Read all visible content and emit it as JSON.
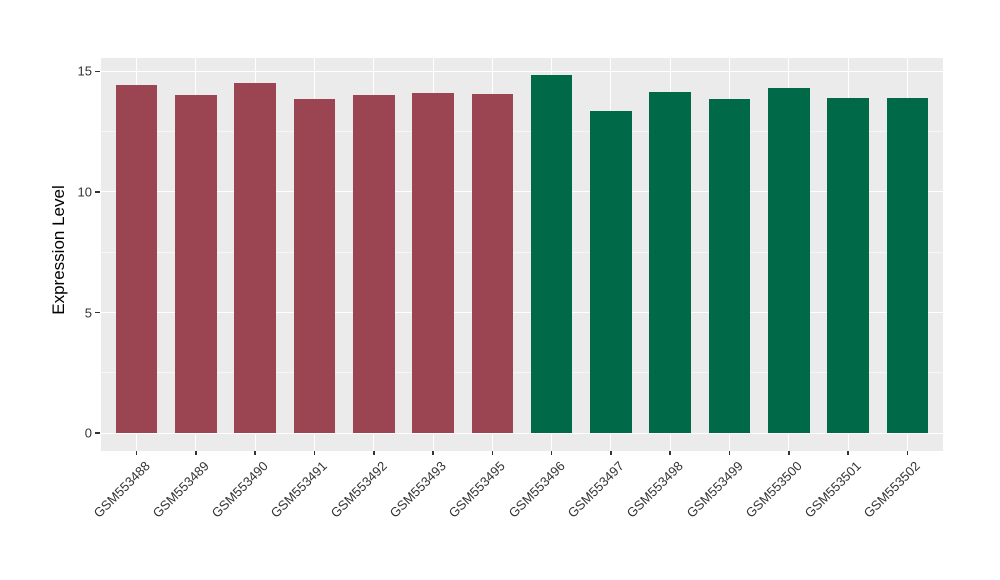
{
  "chart_data": {
    "type": "bar",
    "title": "",
    "xlabel": "",
    "ylabel": "Expression Level",
    "categories": [
      "GSM553488",
      "GSM553489",
      "GSM553490",
      "GSM553491",
      "GSM553492",
      "GSM553493",
      "GSM553495",
      "GSM553496",
      "GSM553497",
      "GSM553498",
      "GSM553499",
      "GSM553500",
      "GSM553501",
      "GSM553502"
    ],
    "values": [
      14.45,
      14.0,
      14.5,
      13.85,
      14.0,
      14.1,
      14.05,
      14.85,
      13.35,
      14.15,
      13.85,
      14.3,
      13.9,
      13.9
    ],
    "bar_groups": [
      "group1",
      "group1",
      "group1",
      "group1",
      "group1",
      "group1",
      "group1",
      "group2",
      "group2",
      "group2",
      "group2",
      "group2",
      "group2",
      "group2"
    ],
    "group_colors": {
      "group1": "#9B4452",
      "group2": "#006A48"
    },
    "bar_width": 0.7,
    "y_ticks": [
      0,
      5,
      10,
      15
    ],
    "y_tick_labels": [
      "0",
      "5",
      "10",
      "15"
    ],
    "y_minor_ticks": [
      2.5,
      7.5,
      12.5
    ],
    "ylim": [
      -0.74,
      15.55
    ],
    "grid": true,
    "legend": "none",
    "panel_bg": "#EBEBEB",
    "grid_major_color": "#FFFFFF",
    "axis_text_color": "#333333"
  }
}
